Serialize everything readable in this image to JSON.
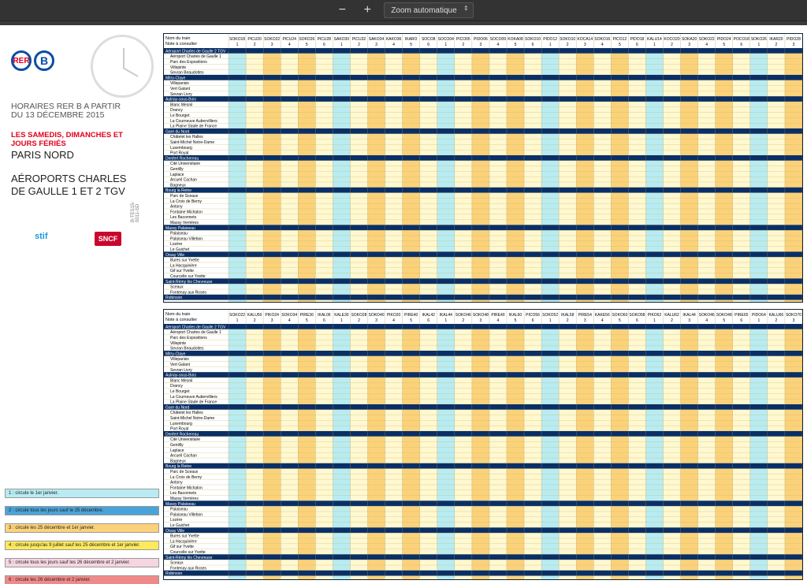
{
  "toolbar": {
    "zoom_out_label": "−",
    "zoom_in_label": "+",
    "zoom_label": "Zoom automatique"
  },
  "doc": {
    "rer_label": "RER",
    "line_letter": "B",
    "title": "HORAIRES RER B A PARTIR DU 13 DÉCEMBRE 2015",
    "days": "LES SAMEDIS, DIMANCHES ET JOURS FÉRIÉS",
    "direction_from": "PARIS NORD",
    "direction_to": "AÉROPORTS CHARLES DE GAULLE 1 ET 2 TGV",
    "stif_label": "stif",
    "sncf_label": "SNCF",
    "code": "B-TES15-0011-SD"
  },
  "legend": [
    {
      "text": "1 : circule le 1er janvier.",
      "color": "#b8ecf2"
    },
    {
      "text": "2 : circule tous les jours sauf le 25 décembre.",
      "color": "#4aa3d8"
    },
    {
      "text": "3 : circule les 25 décembre et 1er janvier.",
      "color": "#fbd27a"
    },
    {
      "text": "4 : circule jusqu'au 9 juillet sauf les 25 décembre et 1er janvier.",
      "color": "#fce95c"
    },
    {
      "text": "5 : circule tous les jours sauf les 26 décembre et 2 janvier.",
      "color": "#f6d6e0"
    },
    {
      "text": "6 : circule les 26 décembre et 2 janvier.",
      "color": "#f08a8a"
    }
  ],
  "stations": [
    "Aéroport Charles de Gaulle 2 TGV",
    "Aéroport Charles de Gaulle 1",
    "Parc des Expositions",
    "Villepinte",
    "Sevran Beaudottes",
    "Mitry-Claye",
    "Villeparisis",
    "Vert Galant",
    "Sevran Livry",
    "Aulnay-sous-Bois",
    "Blanc Mesnil",
    "Drancy",
    "Le Bourget",
    "La Courneuve Aubervilliers",
    "La Plaine Stade de France",
    "Gare du Nord",
    "Châtelet les Halles",
    "Saint-Michel Notre-Dame",
    "Luxembourg",
    "Port Royal",
    "Denfert Rochereau",
    "Cité Universitaire",
    "Gentilly",
    "Laplace",
    "Arcueil Cachan",
    "Bagneux",
    "Bourg la Reine",
    "Parc de Sceaux",
    "La Croix de Berny",
    "Antony",
    "Fontaine Michalon",
    "Les Baconnets",
    "Massy Verrières",
    "Massy Palaiseau",
    "Palaiseau",
    "Palaiseau Villebon",
    "Lozère",
    "Le Guichet",
    "Orsay Ville",
    "Bures sur Yvette",
    "La Hacquinière",
    "Gif sur Yvette",
    "Courcelle sur Yvette",
    "Saint-Rémy lès Chevreuse",
    "Sceaux",
    "Fontenay aux Roses",
    "Robinson"
  ],
  "trains_top": [
    "SOKO18",
    "PICU20",
    "SOKO22",
    "PICU24",
    "SOKO26",
    "PICU28",
    "SAKO30",
    "PICU32",
    "SAKO34",
    "KAKO36",
    "IKARO",
    "SOCO8",
    "SOCO04",
    "PICO05",
    "PIDO06",
    "SOCO09",
    "KOKA08",
    "SOKO10",
    "PIDO12",
    "SOKO10",
    "KOCA14",
    "SOKO16",
    "PICO12",
    "PIDO18",
    "KALU14",
    "KOCO20",
    "SOKA20",
    "SOKO22",
    "PIDO24",
    "POCO18",
    "SOKO26",
    "IKAR20",
    "PIDO28"
  ],
  "trains_bottom": [
    "SOKO22",
    "KALU50",
    "PIKO24",
    "SOKO34",
    "PIRE36",
    "IKAL06",
    "KALE30",
    "SOKO28",
    "SOKO40",
    "PIKO20",
    "PIRE40",
    "IKAL42",
    "IKAL44",
    "SOKO46",
    "SOKO48",
    "PIRE40",
    "IKAL60",
    "PICO56",
    "SOKO52",
    "IKAL58",
    "PIRE54",
    "KAKE56",
    "SOKO60",
    "SOKO58",
    "PIKO62",
    "KALU62",
    "IKAL44",
    "SOKO46",
    "SOKO48",
    "PIRE65",
    "PIDO64",
    "KALU66",
    "SOKO70"
  ]
}
